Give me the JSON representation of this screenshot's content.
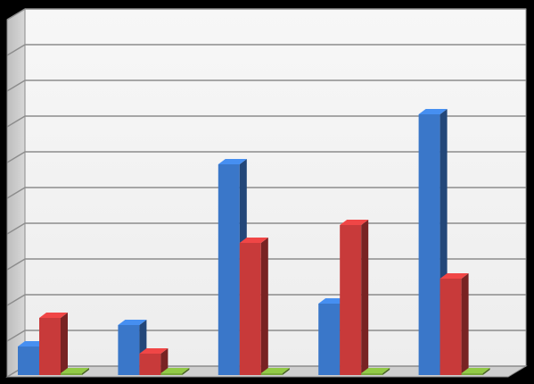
{
  "chart_data": {
    "type": "bar",
    "style": "3d-clustered-column",
    "title": "",
    "xlabel": "",
    "ylabel": "",
    "grid": true,
    "ylim": [
      0,
      10
    ],
    "categories": [
      "",
      "",
      "",
      "",
      ""
    ],
    "series": [
      {
        "color": "#3a77c9",
        "values": [
          0.8,
          1.4,
          5.9,
          2.0,
          7.3
        ]
      },
      {
        "color": "#c83a3a",
        "values": [
          1.6,
          0.6,
          3.7,
          4.2,
          2.7
        ]
      },
      {
        "color": "#7aa83a",
        "values": [
          0.05,
          0.05,
          0.05,
          0.05,
          0.05
        ]
      }
    ]
  }
}
